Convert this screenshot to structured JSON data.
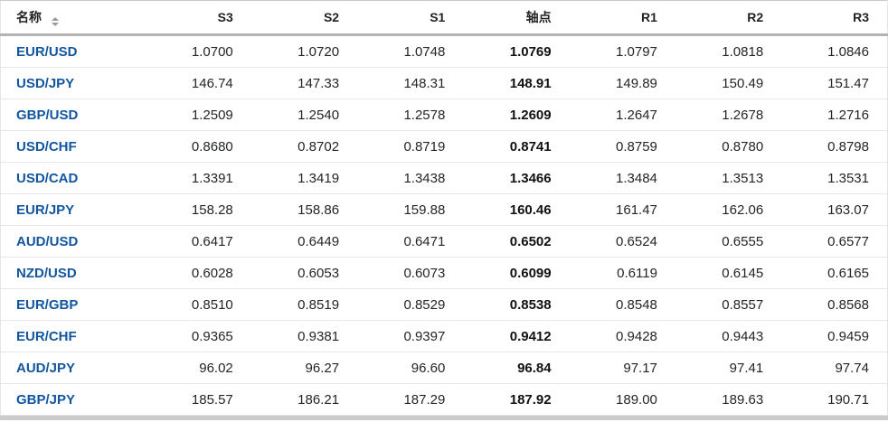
{
  "table": {
    "columns": [
      {
        "key": "name",
        "label": "名称"
      },
      {
        "key": "s3",
        "label": "S3"
      },
      {
        "key": "s2",
        "label": "S2"
      },
      {
        "key": "s1",
        "label": "S1"
      },
      {
        "key": "pivot",
        "label": "轴点"
      },
      {
        "key": "r1",
        "label": "R1"
      },
      {
        "key": "r2",
        "label": "R2"
      },
      {
        "key": "r3",
        "label": "R3"
      }
    ],
    "value_keys": [
      "s3",
      "s2",
      "s1",
      "pivot",
      "r1",
      "r2",
      "r3"
    ],
    "rows": [
      {
        "name": "EUR/USD",
        "s3": "1.0700",
        "s2": "1.0720",
        "s1": "1.0748",
        "pivot": "1.0769",
        "r1": "1.0797",
        "r2": "1.0818",
        "r3": "1.0846"
      },
      {
        "name": "USD/JPY",
        "s3": "146.74",
        "s2": "147.33",
        "s1": "148.31",
        "pivot": "148.91",
        "r1": "149.89",
        "r2": "150.49",
        "r3": "151.47"
      },
      {
        "name": "GBP/USD",
        "s3": "1.2509",
        "s2": "1.2540",
        "s1": "1.2578",
        "pivot": "1.2609",
        "r1": "1.2647",
        "r2": "1.2678",
        "r3": "1.2716"
      },
      {
        "name": "USD/CHF",
        "s3": "0.8680",
        "s2": "0.8702",
        "s1": "0.8719",
        "pivot": "0.8741",
        "r1": "0.8759",
        "r2": "0.8780",
        "r3": "0.8798"
      },
      {
        "name": "USD/CAD",
        "s3": "1.3391",
        "s2": "1.3419",
        "s1": "1.3438",
        "pivot": "1.3466",
        "r1": "1.3484",
        "r2": "1.3513",
        "r3": "1.3531"
      },
      {
        "name": "EUR/JPY",
        "s3": "158.28",
        "s2": "158.86",
        "s1": "159.88",
        "pivot": "160.46",
        "r1": "161.47",
        "r2": "162.06",
        "r3": "163.07"
      },
      {
        "name": "AUD/USD",
        "s3": "0.6417",
        "s2": "0.6449",
        "s1": "0.6471",
        "pivot": "0.6502",
        "r1": "0.6524",
        "r2": "0.6555",
        "r3": "0.6577"
      },
      {
        "name": "NZD/USD",
        "s3": "0.6028",
        "s2": "0.6053",
        "s1": "0.6073",
        "pivot": "0.6099",
        "r1": "0.6119",
        "r2": "0.6145",
        "r3": "0.6165"
      },
      {
        "name": "EUR/GBP",
        "s3": "0.8510",
        "s2": "0.8519",
        "s1": "0.8529",
        "pivot": "0.8538",
        "r1": "0.8548",
        "r2": "0.8557",
        "r3": "0.8568"
      },
      {
        "name": "EUR/CHF",
        "s3": "0.9365",
        "s2": "0.9381",
        "s1": "0.9397",
        "pivot": "0.9412",
        "r1": "0.9428",
        "r2": "0.9443",
        "r3": "0.9459"
      },
      {
        "name": "AUD/JPY",
        "s3": "96.02",
        "s2": "96.27",
        "s1": "96.60",
        "pivot": "96.84",
        "r1": "97.17",
        "r2": "97.41",
        "r3": "97.74"
      },
      {
        "name": "GBP/JPY",
        "s3": "185.57",
        "s2": "186.21",
        "s1": "187.29",
        "pivot": "187.92",
        "r1": "189.00",
        "r2": "189.63",
        "r3": "190.71"
      }
    ]
  },
  "icons": {
    "sort": "sort-arrows-icon"
  },
  "colors": {
    "link_blue": "#1256A0",
    "value_text": "#232526",
    "header_text": "#222222",
    "row_border": "#e6e6e6",
    "header_border": "#b3b3b3",
    "bottom_bar": "#cbcbcb",
    "sort_icon": "#9a9a9a"
  }
}
